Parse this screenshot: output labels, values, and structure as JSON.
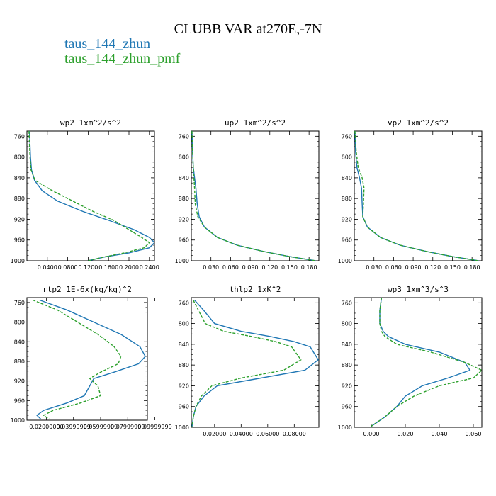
{
  "title": "CLUBB VAR at270E,-7N",
  "legend": [
    {
      "name": "taus_144_zhun",
      "color": "#1f77b4",
      "dash": "solid"
    },
    {
      "name": "taus_144_zhun_pmf",
      "color": "#2ca02c",
      "dash": "dashed"
    }
  ],
  "chart_data": [
    {
      "type": "line",
      "title": "wp2  1xm^2/s^2",
      "xlim": [
        0,
        0.25
      ],
      "ylim": [
        1000,
        750
      ],
      "xticks": [
        "0.0400",
        "0.0800",
        "0.1200",
        "0.1600",
        "0.2000",
        "0.2400"
      ],
      "xtick_values": [
        0.04,
        0.08,
        0.12,
        0.16,
        0.2,
        0.24
      ],
      "yticks": [
        "760",
        "800",
        "840",
        "880",
        "920",
        "960",
        "1000"
      ],
      "ytick_values": [
        760,
        800,
        840,
        880,
        920,
        960,
        1000
      ],
      "series": [
        {
          "name": "taus_144_zhun",
          "x": [
            0.005,
            0.006,
            0.007,
            0.009,
            0.015,
            0.03,
            0.06,
            0.11,
            0.16,
            0.21,
            0.24,
            0.25,
            0.24,
            0.2,
            0.15,
            0.12
          ],
          "y": [
            750,
            775,
            800,
            825,
            845,
            865,
            885,
            905,
            922,
            940,
            955,
            965,
            975,
            985,
            993,
            1000
          ]
        },
        {
          "name": "taus_144_zhun_pmf",
          "x": [
            0.004,
            0.005,
            0.006,
            0.008,
            0.016,
            0.05,
            0.09,
            0.13,
            0.17,
            0.2,
            0.225,
            0.24,
            0.23,
            0.19,
            0.15,
            0.12
          ],
          "y": [
            750,
            775,
            800,
            825,
            845,
            865,
            885,
            905,
            922,
            940,
            955,
            965,
            975,
            985,
            993,
            1000
          ]
        }
      ]
    },
    {
      "type": "line",
      "title": "up2  1xm^2/s^2",
      "xlim": [
        0,
        0.195
      ],
      "ylim": [
        1000,
        750
      ],
      "xticks": [
        "0.030",
        "0.060",
        "0.090",
        "0.120",
        "0.150",
        "0.180"
      ],
      "xtick_values": [
        0.03,
        0.06,
        0.09,
        0.12,
        0.15,
        0.18
      ],
      "yticks": [
        "760",
        "800",
        "840",
        "880",
        "920",
        "960",
        "1000"
      ],
      "ytick_values": [
        760,
        800,
        840,
        880,
        920,
        960,
        1000
      ],
      "series": [
        {
          "name": "taus_144_zhun",
          "x": [
            0.001,
            0.002,
            0.003,
            0.005,
            0.007,
            0.009,
            0.012,
            0.02,
            0.04,
            0.07,
            0.11,
            0.15,
            0.19
          ],
          "y": [
            750,
            790,
            820,
            840,
            860,
            890,
            915,
            935,
            955,
            970,
            982,
            992,
            1000
          ]
        },
        {
          "name": "taus_144_zhun_pmf",
          "x": [
            0.001,
            0.002,
            0.003,
            0.004,
            0.005,
            0.006,
            0.01,
            0.02,
            0.04,
            0.07,
            0.11,
            0.15,
            0.19
          ],
          "y": [
            750,
            790,
            820,
            840,
            860,
            890,
            915,
            935,
            955,
            970,
            982,
            992,
            1000
          ]
        }
      ]
    },
    {
      "type": "line",
      "title": "vp2  1xm^2/s^2",
      "xlim": [
        0,
        0.195
      ],
      "ylim": [
        1000,
        750
      ],
      "xticks": [
        "0.030",
        "0.060",
        "0.090",
        "0.120",
        "0.150",
        "0.180"
      ],
      "xtick_values": [
        0.03,
        0.06,
        0.09,
        0.12,
        0.15,
        0.18
      ],
      "yticks": [
        "760",
        "800",
        "840",
        "880",
        "920",
        "960",
        "1000"
      ],
      "ytick_values": [
        760,
        800,
        840,
        880,
        920,
        960,
        1000
      ],
      "series": [
        {
          "name": "taus_144_zhun",
          "x": [
            0.001,
            0.002,
            0.004,
            0.008,
            0.011,
            0.012,
            0.013,
            0.02,
            0.04,
            0.07,
            0.11,
            0.15,
            0.19
          ],
          "y": [
            750,
            790,
            820,
            840,
            860,
            890,
            915,
            935,
            955,
            970,
            982,
            992,
            1000
          ]
        },
        {
          "name": "taus_144_zhun_pmf",
          "x": [
            0.001,
            0.003,
            0.006,
            0.012,
            0.015,
            0.014,
            0.013,
            0.02,
            0.04,
            0.07,
            0.11,
            0.15,
            0.19
          ],
          "y": [
            750,
            790,
            820,
            840,
            860,
            890,
            915,
            935,
            955,
            970,
            982,
            992,
            1000
          ]
        }
      ]
    },
    {
      "type": "line",
      "title": "rtp2  1E-6x(kg/kg)^2",
      "xlim": [
        0.00565,
        0.0945
      ],
      "ylim": [
        1000,
        750
      ],
      "xticks": [
        "0.02000000",
        "0.03999999",
        "0.05999999",
        "0.07999999",
        "0.09999999"
      ],
      "xtick_values": [
        0.02,
        0.04,
        0.06,
        0.08,
        0.1
      ],
      "yticks": [
        "760",
        "800",
        "840",
        "880",
        "920",
        "960",
        "1000"
      ],
      "ytick_values": [
        760,
        800,
        840,
        880,
        920,
        960,
        1000
      ],
      "series": [
        {
          "name": "taus_144_zhun",
          "x": [
            0.015,
            0.035,
            0.055,
            0.075,
            0.089,
            0.093,
            0.088,
            0.07,
            0.055,
            0.052,
            0.048,
            0.035,
            0.018,
            0.013,
            0.016
          ],
          "y": [
            755,
            775,
            800,
            825,
            850,
            870,
            885,
            902,
            915,
            930,
            950,
            965,
            980,
            990,
            998
          ]
        },
        {
          "name": "taus_144_zhun_pmf",
          "x": [
            0.01,
            0.028,
            0.043,
            0.058,
            0.07,
            0.075,
            0.073,
            0.06,
            0.052,
            0.058,
            0.06,
            0.045,
            0.025,
            0.018,
            0.022
          ],
          "y": [
            755,
            775,
            800,
            825,
            850,
            870,
            885,
            902,
            915,
            930,
            950,
            965,
            980,
            990,
            998
          ]
        }
      ]
    },
    {
      "type": "line",
      "title": "thlp2  1xK^2",
      "xlim": [
        0.0025,
        0.0985
      ],
      "ylim": [
        1000,
        750
      ],
      "xticks": [
        "0.02000",
        "0.04000",
        "0.06000",
        "0.08000"
      ],
      "xtick_values": [
        0.02,
        0.04,
        0.06,
        0.08
      ],
      "yticks": [
        "760",
        "800",
        "840",
        "880",
        "920",
        "960",
        "1000"
      ],
      "ytick_values": [
        760,
        800,
        840,
        880,
        920,
        960,
        1000
      ],
      "series": [
        {
          "name": "taus_144_zhun",
          "x": [
            0.005,
            0.012,
            0.02,
            0.04,
            0.062,
            0.08,
            0.092,
            0.098,
            0.088,
            0.055,
            0.022,
            0.012,
            0.006,
            0.004,
            0.003
          ],
          "y": [
            755,
            775,
            800,
            815,
            825,
            835,
            845,
            870,
            890,
            905,
            920,
            940,
            960,
            980,
            1000
          ]
        },
        {
          "name": "taus_144_zhun_pmf",
          "x": [
            0.004,
            0.008,
            0.013,
            0.027,
            0.048,
            0.066,
            0.078,
            0.085,
            0.072,
            0.04,
            0.018,
            0.01,
            0.006,
            0.004,
            0.003
          ],
          "y": [
            755,
            775,
            800,
            815,
            825,
            835,
            845,
            870,
            890,
            905,
            920,
            940,
            960,
            980,
            1000
          ]
        }
      ]
    },
    {
      "type": "line",
      "title": "wp3  1xm^3/s^3",
      "xlim": [
        -0.01,
        0.065
      ],
      "ylim": [
        1000,
        750
      ],
      "xticks": [
        "0.000",
        "0.020",
        "0.040",
        "0.060"
      ],
      "xtick_values": [
        0,
        0.02,
        0.04,
        0.06
      ],
      "yticks": [
        "760",
        "800",
        "840",
        "880",
        "920",
        "960",
        "1000"
      ],
      "ytick_values": [
        760,
        800,
        840,
        880,
        920,
        960,
        1000
      ],
      "series": [
        {
          "name": "taus_144_zhun",
          "x": [
            0.006,
            0.005,
            0.005,
            0.007,
            0.01,
            0.02,
            0.04,
            0.055,
            0.058,
            0.045,
            0.03,
            0.02,
            0.015,
            0.008,
            0
          ],
          "y": [
            750,
            775,
            800,
            815,
            825,
            840,
            855,
            875,
            890,
            905,
            920,
            940,
            960,
            980,
            998
          ]
        },
        {
          "name": "taus_144_zhun_pmf",
          "x": [
            0.006,
            0.005,
            0.005,
            0.006,
            0.008,
            0.015,
            0.035,
            0.055,
            0.065,
            0.06,
            0.04,
            0.025,
            0.015,
            0.008,
            0
          ],
          "y": [
            750,
            775,
            800,
            815,
            825,
            840,
            855,
            875,
            890,
            905,
            920,
            940,
            960,
            980,
            998
          ]
        }
      ]
    }
  ]
}
